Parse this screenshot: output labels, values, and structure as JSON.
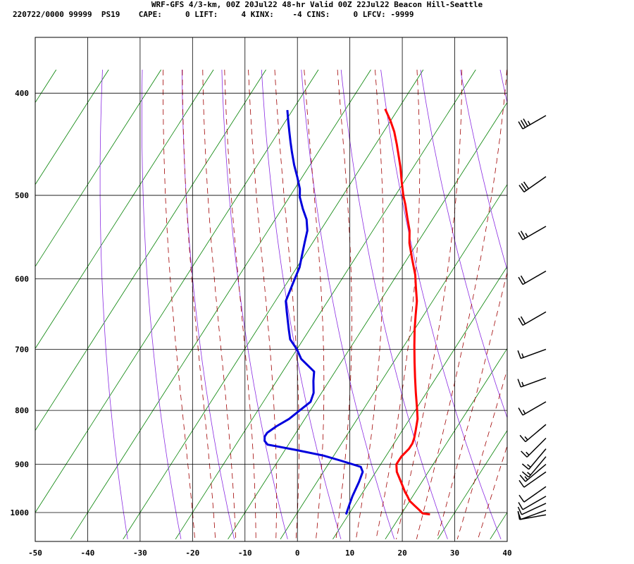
{
  "title": "WRF-GFS 4/3-km, 00Z 20Jul22 48-hr Valid 00Z 22Jul22 Beacon Hill-Seattle",
  "info_line": "220722/0000 99999  PS19    CAPE:     0 LIFT:     4 KINX:    -4 CINS:     0 LFCV: -9999",
  "chart_data": {
    "type": "line",
    "subtype": "skew-T log-p sounding",
    "x_ticks": [
      -50,
      -40,
      -30,
      -20,
      -10,
      0,
      10,
      20,
      30,
      40
    ],
    "y_ticks": [
      400,
      500,
      600,
      700,
      800,
      900,
      1000
    ],
    "xlim": [
      -50,
      40
    ],
    "ylim": [
      1050,
      400
    ],
    "y_scale": "log",
    "grid": true,
    "series": [
      {
        "color": "#ff0000",
        "role": "temperature",
        "points": [
          [
            25.5,
            1004
          ],
          [
            24,
            1002
          ],
          [
            23,
            995
          ],
          [
            21.5,
            985
          ],
          [
            20,
            975
          ],
          [
            19,
            965
          ],
          [
            18,
            956
          ],
          [
            16,
            935
          ],
          [
            14,
            915
          ],
          [
            13,
            900
          ],
          [
            13,
            885
          ],
          [
            13.5,
            870
          ],
          [
            13.5,
            860
          ],
          [
            13.2,
            850
          ],
          [
            12.5,
            835
          ],
          [
            11.5,
            815
          ],
          [
            10,
            795
          ],
          [
            8,
            770
          ],
          [
            6,
            745
          ],
          [
            4,
            720
          ],
          [
            2,
            695
          ],
          [
            0,
            670
          ],
          [
            -1.5,
            650
          ],
          [
            -3,
            630
          ],
          [
            -5,
            610
          ],
          [
            -6.5,
            595
          ],
          [
            -9,
            575
          ],
          [
            -11.5,
            555
          ],
          [
            -13,
            540
          ],
          [
            -15,
            525
          ],
          [
            -17,
            510
          ],
          [
            -18.5,
            500
          ],
          [
            -20.5,
            485
          ],
          [
            -22.5,
            470
          ],
          [
            -24,
            460
          ],
          [
            -26,
            447
          ],
          [
            -28,
            435
          ],
          [
            -30,
            425
          ],
          [
            -32.5,
            414
          ]
        ]
      },
      {
        "color": "#0000dd",
        "role": "dewpoint",
        "points": [
          [
            9.5,
            1004
          ],
          [
            9,
            985
          ],
          [
            8.5,
            965
          ],
          [
            8,
            935
          ],
          [
            7.5,
            915
          ],
          [
            6.5,
            905
          ],
          [
            2,
            893
          ],
          [
            -2,
            883
          ],
          [
            -8,
            872
          ],
          [
            -14,
            862
          ],
          [
            -15,
            855
          ],
          [
            -15.5,
            847
          ],
          [
            -15.5,
            840
          ],
          [
            -14.5,
            828
          ],
          [
            -13,
            815
          ],
          [
            -12,
            800
          ],
          [
            -11,
            785
          ],
          [
            -11.5,
            770
          ],
          [
            -13,
            750
          ],
          [
            -14,
            735
          ],
          [
            -18,
            715
          ],
          [
            -20,
            700
          ],
          [
            -22.5,
            685
          ],
          [
            -24,
            670
          ],
          [
            -26.5,
            645
          ],
          [
            -28,
            630
          ],
          [
            -28.5,
            615
          ],
          [
            -29,
            600
          ],
          [
            -29.5,
            585
          ],
          [
            -30.5,
            570
          ],
          [
            -31.5,
            555
          ],
          [
            -32.5,
            540
          ],
          [
            -34,
            527
          ],
          [
            -36,
            515
          ],
          [
            -38,
            502
          ],
          [
            -39,
            493
          ],
          [
            -41,
            480
          ],
          [
            -43,
            468
          ],
          [
            -45,
            455
          ],
          [
            -46.5,
            445
          ],
          [
            -48,
            435
          ],
          [
            -49.5,
            425
          ],
          [
            -51,
            415
          ]
        ]
      }
    ],
    "wind_barbs": [
      {
        "p": 420,
        "dir": 240,
        "spd": 35
      },
      {
        "p": 480,
        "dir": 235,
        "spd": 30
      },
      {
        "p": 535,
        "dir": 240,
        "spd": 25
      },
      {
        "p": 590,
        "dir": 240,
        "spd": 20
      },
      {
        "p": 645,
        "dir": 240,
        "spd": 20
      },
      {
        "p": 700,
        "dir": 250,
        "spd": 15
      },
      {
        "p": 745,
        "dir": 250,
        "spd": 15
      },
      {
        "p": 785,
        "dir": 240,
        "spd": 15
      },
      {
        "p": 825,
        "dir": 230,
        "spd": 15
      },
      {
        "p": 850,
        "dir": 225,
        "spd": 15
      },
      {
        "p": 870,
        "dir": 220,
        "spd": 15
      },
      {
        "p": 885,
        "dir": 220,
        "spd": 15
      },
      {
        "p": 900,
        "dir": 230,
        "spd": 15
      },
      {
        "p": 915,
        "dir": 235,
        "spd": 10
      },
      {
        "p": 945,
        "dir": 235,
        "spd": 10
      },
      {
        "p": 965,
        "dir": 240,
        "spd": 10
      },
      {
        "p": 980,
        "dir": 245,
        "spd": 10
      },
      {
        "p": 995,
        "dir": 250,
        "spd": 10
      },
      {
        "p": 1005,
        "dir": 260,
        "spd": 10
      }
    ]
  }
}
